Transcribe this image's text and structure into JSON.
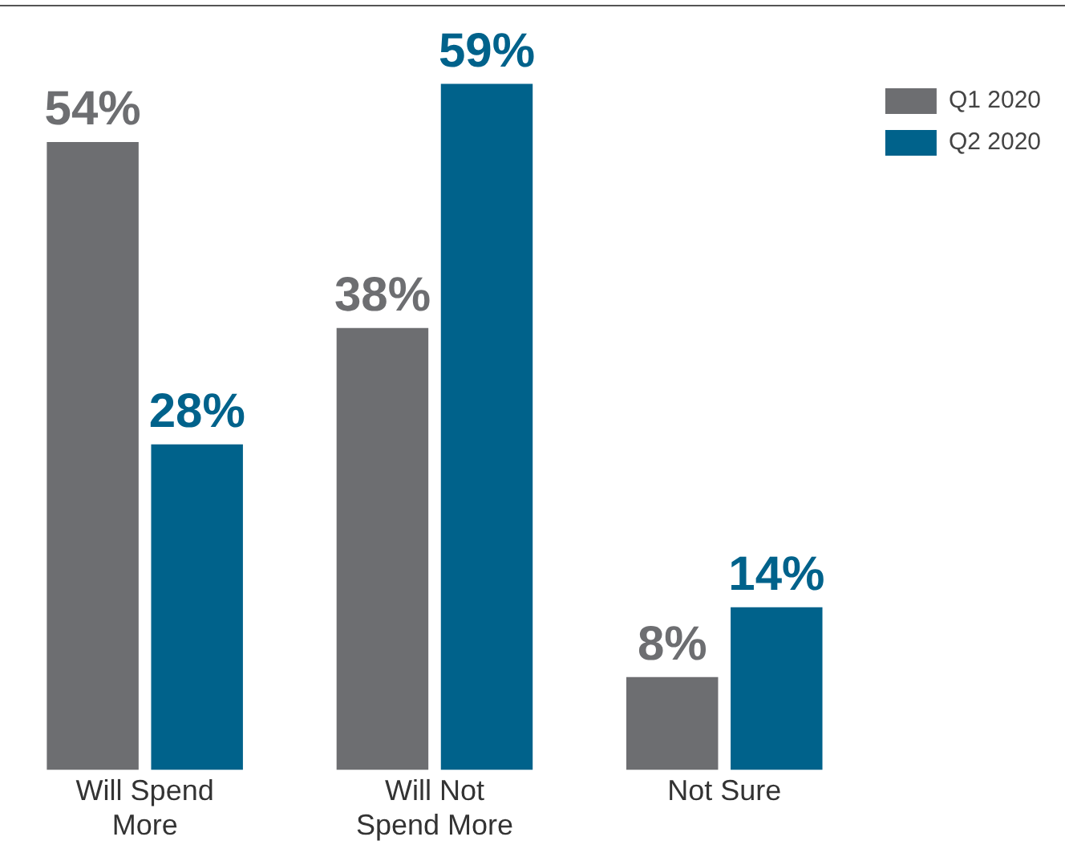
{
  "chart_data": {
    "type": "bar",
    "categories": [
      "Will Spend More",
      "Will Not Spend More",
      "Not Sure"
    ],
    "series": [
      {
        "name": "Q1 2020",
        "color": "#6d6e71",
        "values": [
          54,
          38,
          8
        ],
        "value_labels": [
          "54%",
          "38%",
          "8%"
        ]
      },
      {
        "name": "Q2 2020",
        "color": "#00628b",
        "values": [
          28,
          59,
          14
        ],
        "value_labels": [
          "28%",
          "59%",
          "14%"
        ]
      }
    ],
    "legend": "top right"
  }
}
